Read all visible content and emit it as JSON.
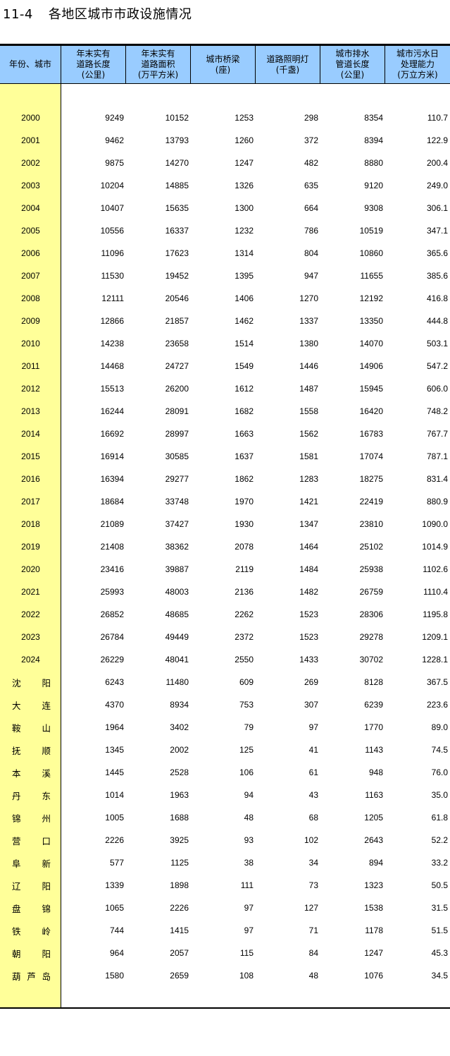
{
  "title": {
    "number": "11-4",
    "text": "各地区城市市政设施情况"
  },
  "columns": [
    "年份、城市",
    "年末实有\n道路长度\n(公里)",
    "年末实有\n道路面积\n(万平方米)",
    "城市桥梁\n(座)",
    "道路照明灯\n(千盏)",
    "城市排水\n管道长度\n(公里)",
    "城市污水日\n处理能力\n(万立方米)"
  ],
  "years": [
    [
      "2000",
      "9249",
      "10152",
      "1253",
      "298",
      "8354",
      "110.7"
    ],
    [
      "2001",
      "9462",
      "13793",
      "1260",
      "372",
      "8394",
      "122.9"
    ],
    [
      "2002",
      "9875",
      "14270",
      "1247",
      "482",
      "8880",
      "200.4"
    ],
    [
      "2003",
      "10204",
      "14885",
      "1326",
      "635",
      "9120",
      "249.0"
    ],
    [
      "2004",
      "10407",
      "15635",
      "1300",
      "664",
      "9308",
      "306.1"
    ],
    [
      "2005",
      "10556",
      "16337",
      "1232",
      "786",
      "10519",
      "347.1"
    ],
    [
      "2006",
      "11096",
      "17623",
      "1314",
      "804",
      "10860",
      "365.6"
    ],
    [
      "2007",
      "11530",
      "19452",
      "1395",
      "947",
      "11655",
      "385.6"
    ],
    [
      "2008",
      "12111",
      "20546",
      "1406",
      "1270",
      "12192",
      "416.8"
    ],
    [
      "2009",
      "12866",
      "21857",
      "1462",
      "1337",
      "13350",
      "444.8"
    ],
    [
      "2010",
      "14238",
      "23658",
      "1514",
      "1380",
      "14070",
      "503.1"
    ],
    [
      "2011",
      "14468",
      "24727",
      "1549",
      "1446",
      "14906",
      "547.2"
    ],
    [
      "2012",
      "15513",
      "26200",
      "1612",
      "1487",
      "15945",
      "606.0"
    ],
    [
      "2013",
      "16244",
      "28091",
      "1682",
      "1558",
      "16420",
      "748.2"
    ],
    [
      "2014",
      "16692",
      "28997",
      "1663",
      "1562",
      "16783",
      "767.7"
    ],
    [
      "2015",
      "16914",
      "30585",
      "1637",
      "1581",
      "17074",
      "787.1"
    ],
    [
      "2016",
      "16394",
      "29277",
      "1862",
      "1283",
      "18275",
      "831.4"
    ],
    [
      "2017",
      "18684",
      "33748",
      "1970",
      "1421",
      "22419",
      "880.9"
    ],
    [
      "2018",
      "21089",
      "37427",
      "1930",
      "1347",
      "23810",
      "1090.0"
    ],
    [
      "2019",
      "21408",
      "38362",
      "2078",
      "1464",
      "25102",
      "1014.9"
    ],
    [
      "2020",
      "23416",
      "39887",
      "2119",
      "1484",
      "25938",
      "1102.6"
    ],
    [
      "2021",
      "25993",
      "48003",
      "2136",
      "1482",
      "26759",
      "1110.4"
    ],
    [
      "2022",
      "26852",
      "48685",
      "2262",
      "1523",
      "28306",
      "1195.8"
    ],
    [
      "2023",
      "26784",
      "49449",
      "2372",
      "1523",
      "29278",
      "1209.1"
    ],
    [
      "2024",
      "26229",
      "48041",
      "2550",
      "1433",
      "30702",
      "1228.1"
    ]
  ],
  "cities": [
    [
      "沈阳",
      "6243",
      "11480",
      "609",
      "269",
      "8128",
      "367.5"
    ],
    [
      "大连",
      "4370",
      "8934",
      "753",
      "307",
      "6239",
      "223.6"
    ],
    [
      "鞍山",
      "1964",
      "3402",
      "79",
      "97",
      "1770",
      "89.0"
    ],
    [
      "抚顺",
      "1345",
      "2002",
      "125",
      "41",
      "1143",
      "74.5"
    ],
    [
      "本溪",
      "1445",
      "2528",
      "106",
      "61",
      "948",
      "76.0"
    ],
    [
      "丹东",
      "1014",
      "1963",
      "94",
      "43",
      "1163",
      "35.0"
    ],
    [
      "锦州",
      "1005",
      "1688",
      "48",
      "68",
      "1205",
      "61.8"
    ],
    [
      "营口",
      "2226",
      "3925",
      "93",
      "102",
      "2643",
      "52.2"
    ],
    [
      "阜新",
      "577",
      "1125",
      "38",
      "34",
      "894",
      "33.2"
    ],
    [
      "辽阳",
      "1339",
      "1898",
      "111",
      "73",
      "1323",
      "50.5"
    ],
    [
      "盘锦",
      "1065",
      "2226",
      "97",
      "127",
      "1538",
      "31.5"
    ],
    [
      "铁岭",
      "744",
      "1415",
      "97",
      "71",
      "1178",
      "51.5"
    ],
    [
      "朝阳",
      "964",
      "2057",
      "115",
      "84",
      "1247",
      "45.3"
    ],
    [
      "葫芦岛",
      "1580",
      "2659",
      "108",
      "48",
      "1076",
      "34.5"
    ]
  ],
  "colors": {
    "header_bg": "#99CCFF",
    "label_col_bg": "#FFFF99"
  }
}
